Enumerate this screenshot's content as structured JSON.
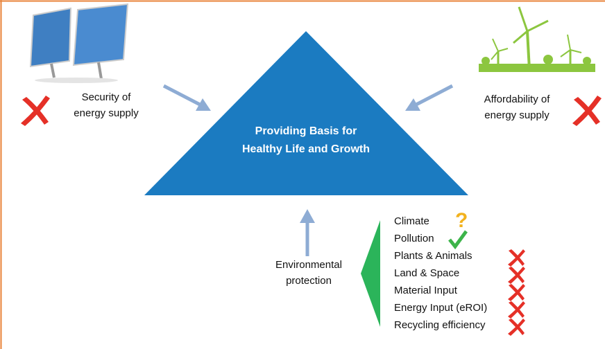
{
  "center_label": [
    "Providing Basis for",
    "Healthy Life and Growth"
  ],
  "pillars": [
    {
      "label": [
        "Security of",
        "energy supply"
      ]
    },
    {
      "label": [
        "Affordability of",
        "energy supply"
      ]
    },
    {
      "label": [
        "Environmental",
        "protection"
      ]
    }
  ],
  "environmental_factors": [
    "Climate",
    "Pollution",
    "Plants & Animals",
    "Land & Space",
    "Material Input",
    "Energy Input (eROI)",
    "Recycling efficiency"
  ]
}
